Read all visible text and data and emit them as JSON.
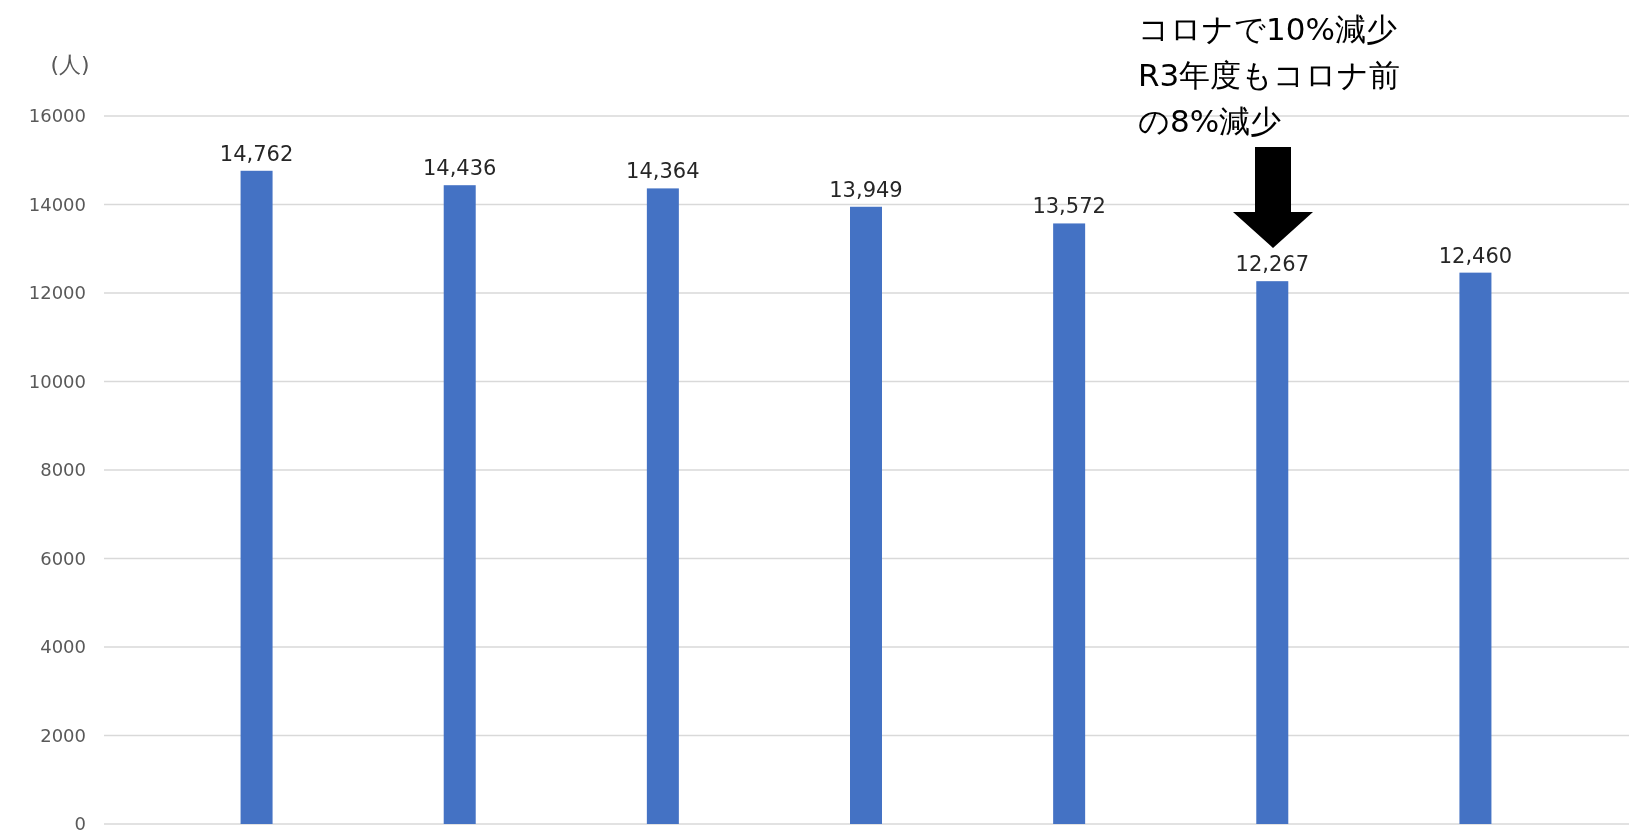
{
  "chart_data": {
    "type": "bar",
    "ylabel": "(人)",
    "categories": [
      null,
      null,
      null,
      null,
      null,
      null,
      null
    ],
    "values": [
      14762,
      14436,
      14364,
      13949,
      13572,
      12267,
      12460
    ],
    "value_labels": [
      "14,762",
      "14,436",
      "14,364",
      "13,949",
      "13,572",
      "12,267",
      "12,460"
    ],
    "color": "#4472c4",
    "ylim": [
      0,
      16000
    ],
    "yticks": [
      0,
      2000,
      4000,
      6000,
      8000,
      10000,
      12000,
      14000,
      16000
    ],
    "grid": "y",
    "tick_labels": "y",
    "annotations": [
      "コロナで10%減少R3年度もコロナ前の8%減少"
    ]
  }
}
